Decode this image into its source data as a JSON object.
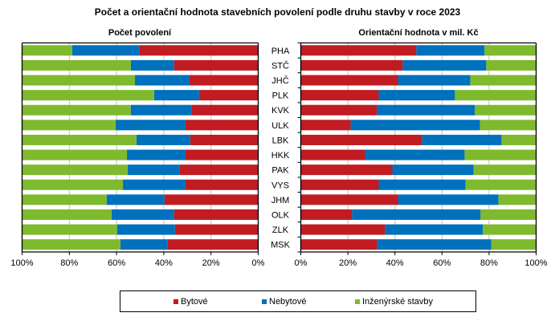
{
  "title": "Počet  a orientační hodnota  stavebních  povolení  podle  druhu stavby  v roce 2023",
  "colors": {
    "bytove": "#C01C22",
    "nebytove": "#0071BC",
    "inzenyrske": "#7FBA2E",
    "grid": "#BFBFBF"
  },
  "legend": [
    {
      "key": "bytove",
      "label": "Bytové"
    },
    {
      "key": "nebytove",
      "label": "Nebytové"
    },
    {
      "key": "inzenyrske",
      "label": "Inženýrské stavby"
    }
  ],
  "chart_data": [
    {
      "type": "bar",
      "orientation": "horizontal",
      "stacked": "100%",
      "title": "Počet  povolení",
      "x_direction": "reversed",
      "xlim": [
        0,
        100
      ],
      "x_ticks": [
        "100%",
        "80%",
        "60%",
        "40%",
        "20%",
        "0%"
      ],
      "grid": true,
      "categories": [
        "PHA",
        "STČ",
        "JHČ",
        "PLK",
        "KVK",
        "ULK",
        "LBK",
        "HKK",
        "PAK",
        "VYS",
        "JHM",
        "OLK",
        "ZLK",
        "MSK"
      ],
      "series": [
        {
          "name": "Bytové",
          "key": "bytove",
          "values": [
            50.2,
            35.6,
            29.1,
            25.1,
            28.1,
            30.8,
            28.8,
            30.8,
            33.2,
            30.8,
            39.7,
            35.6,
            35.3,
            38.3
          ]
        },
        {
          "name": "Nebytové",
          "key": "nebytove",
          "values": [
            28.6,
            18.4,
            23.1,
            19.0,
            25.9,
            29.6,
            22.8,
            24.8,
            22.1,
            26.5,
            24.5,
            26.5,
            24.5,
            20.1
          ]
        },
        {
          "name": "Inženýrské stavby",
          "key": "inzenyrske",
          "values": [
            21.2,
            46.0,
            47.8,
            55.9,
            46.0,
            39.6,
            48.4,
            44.4,
            44.7,
            42.7,
            35.8,
            37.9,
            40.2,
            41.6
          ]
        }
      ]
    },
    {
      "type": "bar",
      "orientation": "horizontal",
      "stacked": "100%",
      "title": "Orientační hodnota v mil. Kč",
      "x_direction": "normal",
      "xlim": [
        0,
        100
      ],
      "x_ticks": [
        "0%",
        "20%",
        "40%",
        "60%",
        "80%",
        "100%"
      ],
      "grid": true,
      "categories": [
        "PHA",
        "STČ",
        "JHČ",
        "PLK",
        "KVK",
        "ULK",
        "LBK",
        "HKK",
        "PAK",
        "VYS",
        "JHM",
        "OLK",
        "ZLK",
        "MSK"
      ],
      "series": [
        {
          "name": "Bytové",
          "key": "bytove",
          "values": [
            49.1,
            43.3,
            41.3,
            33.1,
            32.4,
            21.2,
            51.5,
            27.3,
            38.9,
            33.1,
            41.3,
            21.8,
            35.8,
            32.4
          ]
        },
        {
          "name": "Nebytové",
          "key": "nebytove",
          "values": [
            29.0,
            35.5,
            30.7,
            32.4,
            41.6,
            54.9,
            33.8,
            42.3,
            34.5,
            36.9,
            42.7,
            54.6,
            41.6,
            48.5
          ]
        },
        {
          "name": "Inženýrské stavby",
          "key": "inzenyrske",
          "values": [
            21.9,
            21.2,
            28.0,
            34.5,
            26.0,
            23.9,
            14.7,
            30.4,
            26.6,
            30.0,
            16.0,
            23.6,
            22.6,
            19.1
          ]
        }
      ]
    }
  ]
}
